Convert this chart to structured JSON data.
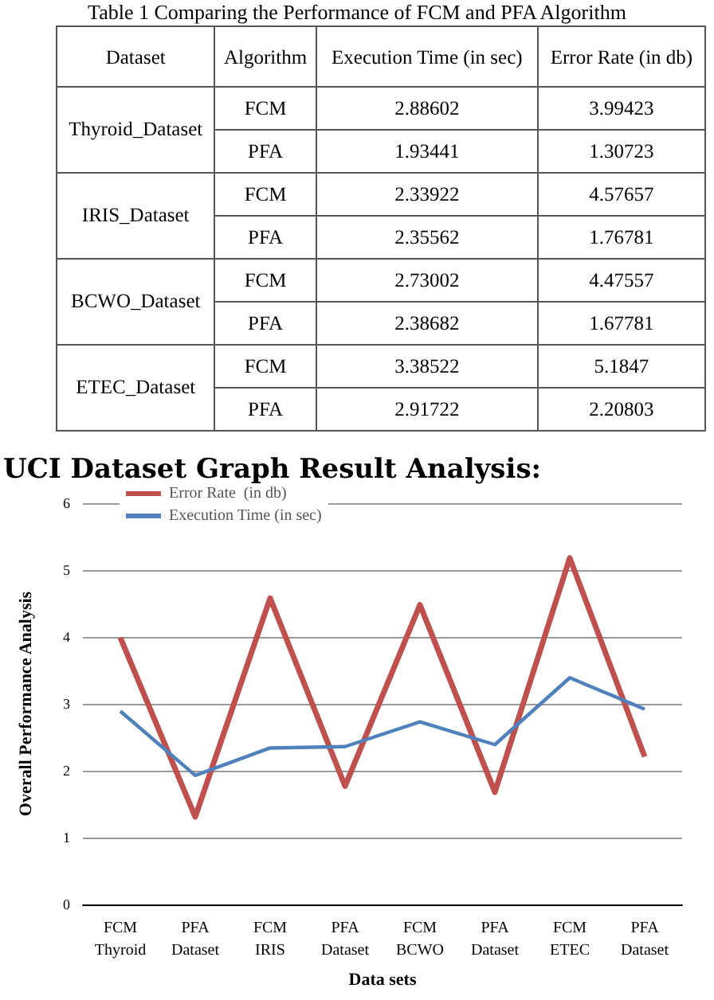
{
  "chart_data": [
    {
      "type": "other",
      "title": "Table 1 Comparing the Performance of FCM and PFA Algorithm",
      "categories": [
        "Dataset",
        "Algorithm",
        "Execution Time (in sec)",
        "Error Rate (in db)"
      ],
      "cell_labels": [
        [
          "Thyroid_Dataset",
          "FCM",
          "2.88602",
          "3.99423"
        ],
        [
          null,
          "PFA",
          "1.93441",
          "1.30723"
        ],
        [
          "IRIS_Dataset",
          "FCM",
          "2.33922",
          "4.57657"
        ],
        [
          null,
          "PFA",
          "2.35562",
          "1.76781"
        ],
        [
          "BCWO_Dataset",
          "FCM",
          "2.73002",
          "4.47557"
        ],
        [
          null,
          "PFA",
          "2.38682",
          "1.67781"
        ],
        [
          "ETEC_Dataset",
          "FCM",
          "3.38522",
          "5.1847"
        ],
        [
          null,
          "PFA",
          "2.91722",
          "2.20803"
        ]
      ]
    },
    {
      "type": "line",
      "title": "UCI Dataset Graph Result Analysis:",
      "xlabel": "Data sets",
      "ylabel": "Overall Performance Analysis",
      "categories": [
        "FCM\nThyroid",
        "PFA\nDataset",
        "FCM\nIRIS",
        "PFA\nDataset",
        "FCM\nBCWO",
        "PFA\nDataset",
        "FCM\nETEC",
        "PFA\nDataset"
      ],
      "series": [
        {
          "name": "Error Rate  (in db)",
          "color": "#c0504d",
          "values": [
            3.99,
            1.31,
            4.58,
            1.77,
            4.48,
            1.68,
            5.18,
            2.21
          ]
        },
        {
          "name": "Execution Time (in sec)",
          "color": "#4f81bd",
          "values": [
            2.89,
            1.93,
            2.34,
            2.36,
            2.73,
            2.39,
            3.39,
            2.92
          ]
        }
      ],
      "ylim": [
        0,
        6
      ],
      "yticks": [
        0,
        1,
        2,
        3,
        4,
        5,
        6
      ],
      "grid": "y",
      "legend": "top left",
      "marker": "none",
      "line_style": "solid"
    }
  ]
}
